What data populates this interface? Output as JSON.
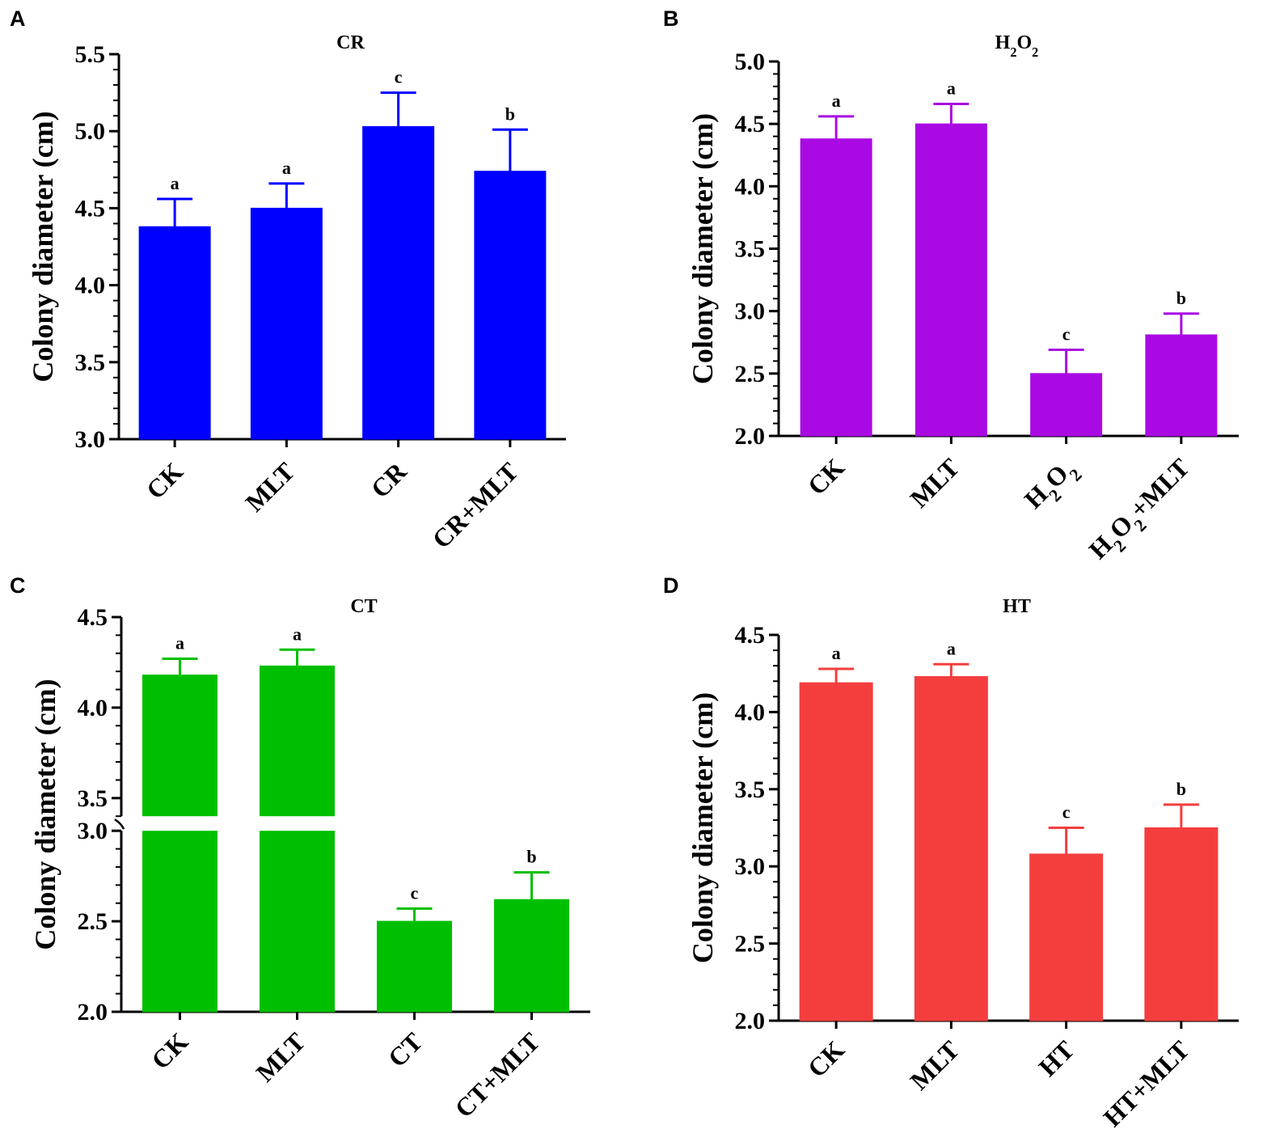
{
  "chart_data": [
    {
      "panel": "A",
      "type": "bar",
      "title": "CR",
      "ylabel": "Colony diameter (cm)",
      "xlabel": "",
      "color": "#0000ff",
      "categories": [
        "CK",
        "MLT",
        "CR",
        "CR+MLT"
      ],
      "values": [
        4.38,
        4.5,
        5.03,
        4.74
      ],
      "errors": [
        0.18,
        0.16,
        0.22,
        0.27
      ],
      "letters": [
        "a",
        "a",
        "c",
        "b"
      ],
      "ylim": [
        3.0,
        5.5
      ],
      "yticks": [
        "3.0",
        "3.5",
        "4.0",
        "4.5",
        "5.0",
        "5.5"
      ]
    },
    {
      "panel": "B",
      "type": "bar",
      "title": "H2O2",
      "ylabel": "Colony diameter (cm)",
      "xlabel": "",
      "color": "#a90ae3",
      "categories": [
        "CK",
        "MLT",
        "H2O2",
        "H2O2+MLT"
      ],
      "values": [
        4.38,
        4.5,
        2.5,
        2.81
      ],
      "errors": [
        0.18,
        0.16,
        0.19,
        0.17
      ],
      "letters": [
        "a",
        "a",
        "c",
        "b"
      ],
      "ylim": [
        2.0,
        5.0
      ],
      "yticks": [
        "2.0",
        "2.5",
        "3.0",
        "3.5",
        "4.0",
        "4.5",
        "5.0"
      ]
    },
    {
      "panel": "C",
      "type": "bar",
      "title": "CT",
      "ylabel": "Colony diameter (cm)",
      "xlabel": "",
      "color": "#00bf00",
      "categories": [
        "CK",
        "MLT",
        "CT",
        "CT+MLT"
      ],
      "values": [
        4.18,
        4.23,
        2.5,
        2.62
      ],
      "errors": [
        0.09,
        0.09,
        0.07,
        0.15
      ],
      "letters": [
        "a",
        "a",
        "c",
        "b"
      ],
      "ylim": [
        2.0,
        4.5
      ],
      "axis_break": [
        3.0,
        3.4
      ],
      "yticks": [
        "2.0",
        "2.5",
        "3.0",
        "3.5",
        "4.0",
        "4.5"
      ]
    },
    {
      "panel": "D",
      "type": "bar",
      "title": "HT",
      "ylabel": "Colony diameter (cm)",
      "xlabel": "",
      "color": "#f43e3e",
      "categories": [
        "CK",
        "MLT",
        "HT",
        "HT+MLT"
      ],
      "values": [
        4.19,
        4.23,
        3.08,
        3.25
      ],
      "errors": [
        0.09,
        0.08,
        0.17,
        0.15
      ],
      "letters": [
        "a",
        "a",
        "c",
        "b"
      ],
      "ylim": [
        2.0,
        4.5
      ],
      "yticks": [
        "2.0",
        "2.5",
        "3.0",
        "3.5",
        "4.0",
        "4.5"
      ]
    }
  ]
}
